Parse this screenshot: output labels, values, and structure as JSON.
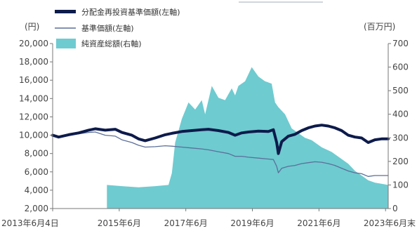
{
  "chart_data": {
    "type": "line",
    "y_left": {
      "unit": "(円)",
      "ticks": [
        "2,000",
        "4,000",
        "6,000",
        "8,000",
        "10,000",
        "12,000",
        "14,000",
        "16,000",
        "18,000",
        "20,000"
      ],
      "range": [
        2000,
        20000
      ]
    },
    "y_right": {
      "unit": "(百万円)",
      "ticks": [
        "0",
        "100",
        "200",
        "300",
        "400",
        "500",
        "600",
        "700"
      ],
      "range": [
        0,
        700
      ]
    },
    "x_ticks": [
      "2013年6月4日",
      "2015年6月",
      "2017年6月",
      "2019年6月",
      "2021年6月",
      "2023年6月末"
    ],
    "x_range": [
      2013.42,
      2023.5
    ],
    "series": [
      {
        "name": "分配金再投資基準価額(左軸)",
        "axis": "left",
        "color": "#0d1b4b",
        "points": [
          [
            2013.42,
            10000
          ],
          [
            2013.6,
            9800
          ],
          [
            2013.9,
            10050
          ],
          [
            2014.2,
            10250
          ],
          [
            2014.5,
            10550
          ],
          [
            2014.7,
            10700
          ],
          [
            2015.0,
            10550
          ],
          [
            2015.3,
            10650
          ],
          [
            2015.5,
            10300
          ],
          [
            2015.8,
            10000
          ],
          [
            2016.0,
            9600
          ],
          [
            2016.2,
            9400
          ],
          [
            2016.5,
            9700
          ],
          [
            2016.8,
            10050
          ],
          [
            2017.0,
            10200
          ],
          [
            2017.3,
            10400
          ],
          [
            2017.6,
            10500
          ],
          [
            2017.9,
            10600
          ],
          [
            2018.1,
            10650
          ],
          [
            2018.4,
            10500
          ],
          [
            2018.7,
            10300
          ],
          [
            2018.9,
            10000
          ],
          [
            2019.1,
            10250
          ],
          [
            2019.3,
            10350
          ],
          [
            2019.6,
            10450
          ],
          [
            2019.9,
            10400
          ],
          [
            2020.05,
            10600
          ],
          [
            2020.15,
            9200
          ],
          [
            2020.2,
            8000
          ],
          [
            2020.3,
            9300
          ],
          [
            2020.5,
            9900
          ],
          [
            2020.7,
            10100
          ],
          [
            2020.9,
            10500
          ],
          [
            2021.1,
            10800
          ],
          [
            2021.3,
            11000
          ],
          [
            2021.5,
            11100
          ],
          [
            2021.7,
            11000
          ],
          [
            2021.9,
            10800
          ],
          [
            2022.1,
            10500
          ],
          [
            2022.3,
            10000
          ],
          [
            2022.5,
            9800
          ],
          [
            2022.7,
            9700
          ],
          [
            2022.9,
            9200
          ],
          [
            2023.1,
            9500
          ],
          [
            2023.3,
            9600
          ],
          [
            2023.5,
            9600
          ]
        ]
      },
      {
        "name": "基準価額(左軸)",
        "axis": "left",
        "color": "#5b6f9a",
        "points": [
          [
            2013.42,
            10000
          ],
          [
            2013.6,
            9800
          ],
          [
            2013.9,
            10000
          ],
          [
            2014.2,
            10150
          ],
          [
            2014.5,
            10300
          ],
          [
            2014.7,
            10350
          ],
          [
            2015.0,
            10000
          ],
          [
            2015.3,
            9900
          ],
          [
            2015.5,
            9500
          ],
          [
            2015.8,
            9200
          ],
          [
            2016.0,
            8900
          ],
          [
            2016.2,
            8700
          ],
          [
            2016.5,
            8750
          ],
          [
            2016.8,
            8850
          ],
          [
            2017.0,
            8800
          ],
          [
            2017.3,
            8700
          ],
          [
            2017.6,
            8600
          ],
          [
            2017.9,
            8500
          ],
          [
            2018.1,
            8400
          ],
          [
            2018.4,
            8200
          ],
          [
            2018.7,
            8000
          ],
          [
            2018.9,
            7700
          ],
          [
            2019.1,
            7700
          ],
          [
            2019.3,
            7600
          ],
          [
            2019.6,
            7500
          ],
          [
            2019.9,
            7400
          ],
          [
            2020.05,
            7350
          ],
          [
            2020.15,
            6600
          ],
          [
            2020.2,
            5900
          ],
          [
            2020.3,
            6400
          ],
          [
            2020.5,
            6600
          ],
          [
            2020.7,
            6700
          ],
          [
            2020.9,
            6900
          ],
          [
            2021.1,
            7000
          ],
          [
            2021.3,
            7100
          ],
          [
            2021.5,
            7050
          ],
          [
            2021.7,
            6900
          ],
          [
            2021.9,
            6700
          ],
          [
            2022.1,
            6400
          ],
          [
            2022.3,
            6100
          ],
          [
            2022.5,
            5900
          ],
          [
            2022.7,
            5800
          ],
          [
            2022.9,
            5500
          ],
          [
            2023.1,
            5600
          ],
          [
            2023.3,
            5600
          ],
          [
            2023.5,
            5600
          ]
        ]
      },
      {
        "name": "純資産総額(右軸)",
        "axis": "right",
        "type": "area",
        "color": "#6ecbd0",
        "points": [
          [
            2015.05,
            0
          ],
          [
            2015.05,
            100
          ],
          [
            2015.5,
            95
          ],
          [
            2016.0,
            90
          ],
          [
            2016.5,
            95
          ],
          [
            2016.9,
            100
          ],
          [
            2017.0,
            150
          ],
          [
            2017.1,
            280
          ],
          [
            2017.3,
            380
          ],
          [
            2017.5,
            450
          ],
          [
            2017.7,
            420
          ],
          [
            2017.9,
            460
          ],
          [
            2018.0,
            400
          ],
          [
            2018.2,
            520
          ],
          [
            2018.4,
            470
          ],
          [
            2018.6,
            460
          ],
          [
            2018.8,
            510
          ],
          [
            2018.9,
            480
          ],
          [
            2019.0,
            520
          ],
          [
            2019.2,
            540
          ],
          [
            2019.4,
            600
          ],
          [
            2019.6,
            560
          ],
          [
            2019.8,
            540
          ],
          [
            2020.0,
            530
          ],
          [
            2020.1,
            450
          ],
          [
            2020.2,
            430
          ],
          [
            2020.4,
            400
          ],
          [
            2020.6,
            340
          ],
          [
            2020.8,
            320
          ],
          [
            2021.0,
            300
          ],
          [
            2021.2,
            290
          ],
          [
            2021.5,
            260
          ],
          [
            2021.8,
            240
          ],
          [
            2022.0,
            220
          ],
          [
            2022.3,
            190
          ],
          [
            2022.5,
            160
          ],
          [
            2022.7,
            140
          ],
          [
            2022.9,
            120
          ],
          [
            2023.1,
            110
          ],
          [
            2023.3,
            105
          ],
          [
            2023.5,
            100
          ],
          [
            2023.5,
            0
          ]
        ]
      }
    ]
  }
}
